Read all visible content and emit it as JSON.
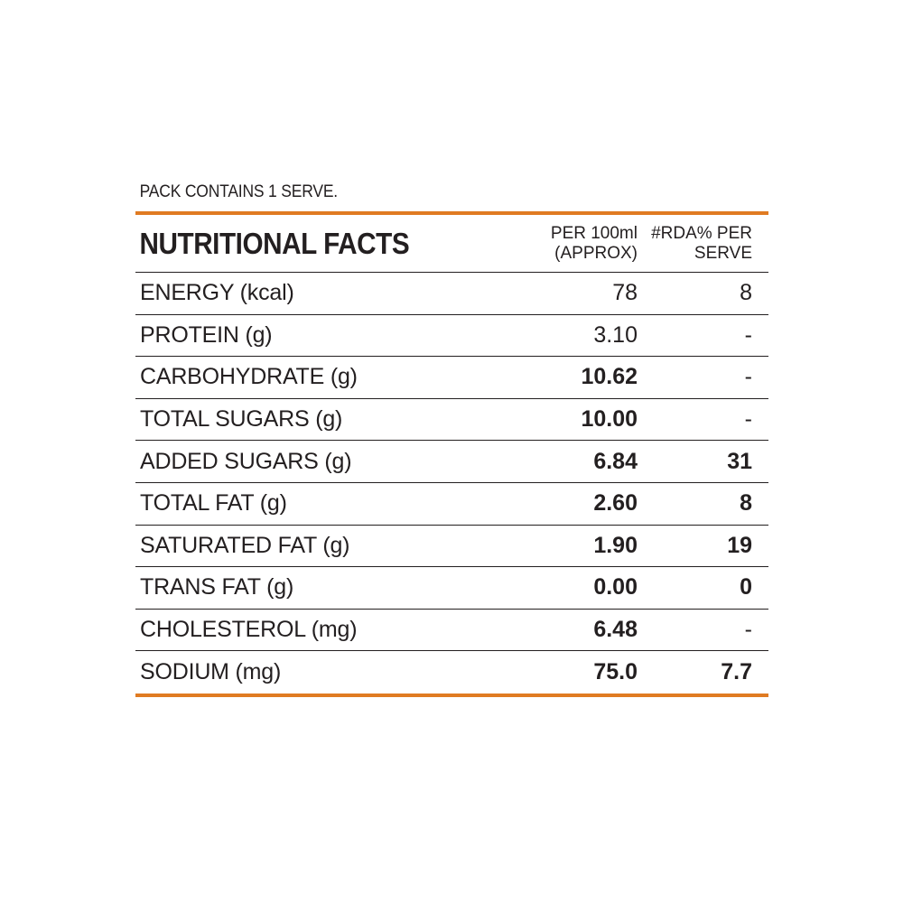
{
  "pack_note": "PACK CONTAINS 1 SERVE.",
  "header": {
    "title": "NUTRITIONAL FACTS",
    "col_per": "PER 100ml\n(APPROX)",
    "col_rda": "#RDA% PER\nSERVE"
  },
  "rows": [
    {
      "label": "ENERGY (kcal)",
      "per100": "78",
      "rda": "8"
    },
    {
      "label": "PROTEIN (g)",
      "per100": "3.10",
      "rda": "-"
    },
    {
      "label": "CARBOHYDRATE (g)",
      "per100": "10.62",
      "rda": "-"
    },
    {
      "label": "TOTAL SUGARS (g)",
      "per100": "10.00",
      "rda": "-"
    },
    {
      "label": "ADDED SUGARS (g)",
      "per100": "6.84",
      "rda": "31"
    },
    {
      "label": "TOTAL FAT (g)",
      "per100": "2.60",
      "rda": "8"
    },
    {
      "label": "SATURATED FAT (g)",
      "per100": "1.90",
      "rda": "19"
    },
    {
      "label": "TRANS FAT (g)",
      "per100": "0.00",
      "rda": "0"
    },
    {
      "label": "CHOLESTEROL (mg)",
      "per100": "6.48",
      "rda": "-"
    },
    {
      "label": "SODIUM (mg)",
      "per100": "75.0",
      "rda": "7.7"
    }
  ],
  "colors": {
    "accent": "#e07b22",
    "text": "#231f20"
  }
}
